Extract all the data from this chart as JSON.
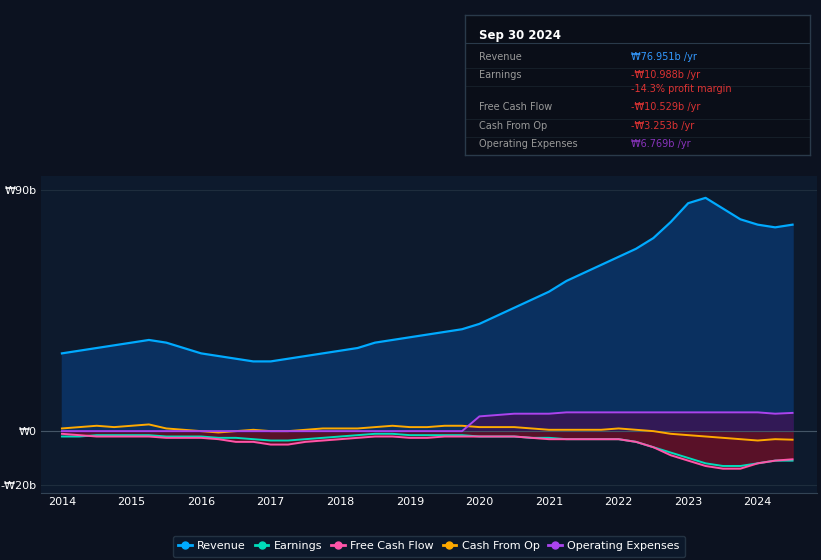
{
  "bg_color": "#0c1220",
  "plot_bg_color": "#0d1a2d",
  "info_box_color": "#0a0f1a",
  "grid_color": "#1e2d3d",
  "title_box": {
    "date": "Sep 30 2024",
    "rows": [
      {
        "label": "Revenue",
        "value": "₩76.951b /yr",
        "value_color": "#3399ff"
      },
      {
        "label": "Earnings",
        "value": "-₩10.988b /yr",
        "value_color": "#dd3333"
      },
      {
        "label": "",
        "value": "-14.3% profit margin",
        "value_color": "#dd3333"
      },
      {
        "label": "Free Cash Flow",
        "value": "-₩10.529b /yr",
        "value_color": "#dd3333"
      },
      {
        "label": "Cash From Op",
        "value": "-₩3.253b /yr",
        "value_color": "#dd3333"
      },
      {
        "label": "Operating Expenses",
        "value": "₩6.769b /yr",
        "value_color": "#8833bb"
      }
    ]
  },
  "years": [
    2014.0,
    2014.25,
    2014.5,
    2014.75,
    2015.0,
    2015.25,
    2015.5,
    2015.75,
    2016.0,
    2016.25,
    2016.5,
    2016.75,
    2017.0,
    2017.25,
    2017.5,
    2017.75,
    2018.0,
    2018.25,
    2018.5,
    2018.75,
    2019.0,
    2019.25,
    2019.5,
    2019.75,
    2020.0,
    2020.25,
    2020.5,
    2020.75,
    2021.0,
    2021.25,
    2021.5,
    2021.75,
    2022.0,
    2022.25,
    2022.5,
    2022.75,
    2023.0,
    2023.25,
    2023.5,
    2023.75,
    2024.0,
    2024.25,
    2024.5
  ],
  "revenue": [
    29,
    30,
    31,
    32,
    33,
    34,
    33,
    31,
    29,
    28,
    27,
    26,
    26,
    27,
    28,
    29,
    30,
    31,
    33,
    34,
    35,
    36,
    37,
    38,
    40,
    43,
    46,
    49,
    52,
    56,
    59,
    62,
    65,
    68,
    72,
    78,
    85,
    87,
    83,
    79,
    77,
    76,
    77
  ],
  "earnings": [
    -2.0,
    -2.0,
    -1.5,
    -1.5,
    -1.5,
    -1.5,
    -2.0,
    -2.0,
    -2.0,
    -2.5,
    -2.5,
    -3.0,
    -3.5,
    -3.5,
    -3.0,
    -2.5,
    -2.0,
    -1.5,
    -1.0,
    -1.0,
    -1.5,
    -1.5,
    -1.5,
    -1.5,
    -2.0,
    -2.0,
    -2.0,
    -2.5,
    -2.5,
    -3.0,
    -3.0,
    -3.0,
    -3.0,
    -4.0,
    -6.0,
    -8.0,
    -10.0,
    -12.0,
    -13.0,
    -13.0,
    -12.0,
    -11.0,
    -11.0
  ],
  "free_cash_flow": [
    -1.0,
    -1.5,
    -2.0,
    -2.0,
    -2.0,
    -2.0,
    -2.5,
    -2.5,
    -2.5,
    -3.0,
    -4.0,
    -4.0,
    -5.0,
    -5.0,
    -4.0,
    -3.5,
    -3.0,
    -2.5,
    -2.0,
    -2.0,
    -2.5,
    -2.5,
    -2.0,
    -2.0,
    -2.0,
    -2.0,
    -2.0,
    -2.5,
    -3.0,
    -3.0,
    -3.0,
    -3.0,
    -3.0,
    -4.0,
    -6.0,
    -9.0,
    -11.0,
    -13.0,
    -14.0,
    -14.0,
    -12.0,
    -11.0,
    -10.5
  ],
  "cash_from_op": [
    1.0,
    1.5,
    2.0,
    1.5,
    2.0,
    2.5,
    1.0,
    0.5,
    0.0,
    -0.5,
    0.0,
    0.5,
    0.0,
    0.0,
    0.5,
    1.0,
    1.0,
    1.0,
    1.5,
    2.0,
    1.5,
    1.5,
    2.0,
    2.0,
    1.5,
    1.5,
    1.5,
    1.0,
    0.5,
    0.5,
    0.5,
    0.5,
    1.0,
    0.5,
    0.0,
    -1.0,
    -1.5,
    -2.0,
    -2.5,
    -3.0,
    -3.5,
    -3.0,
    -3.2
  ],
  "operating_expenses": [
    0.0,
    0.0,
    0.0,
    0.0,
    0.0,
    0.0,
    0.0,
    0.0,
    0.0,
    0.0,
    0.0,
    0.0,
    0.0,
    0.0,
    0.0,
    0.0,
    0.0,
    0.0,
    0.0,
    0.0,
    0.0,
    0.0,
    0.0,
    0.0,
    5.5,
    6.0,
    6.5,
    6.5,
    6.5,
    7.0,
    7.0,
    7.0,
    7.0,
    7.0,
    7.0,
    7.0,
    7.0,
    7.0,
    7.0,
    7.0,
    7.0,
    6.5,
    6.8
  ],
  "revenue_color": "#00aaff",
  "earnings_color": "#00ddbb",
  "fcf_color": "#ff55aa",
  "cash_op_color": "#ffaa00",
  "opex_color": "#aa44ee",
  "revenue_fill": "#0a3060",
  "earnings_fill": "#3a1540",
  "fcf_fill": "#6a1020",
  "opex_fill": "#3a1555",
  "ylim": [
    -23,
    95
  ],
  "yticks": [
    -20,
    0,
    90
  ],
  "ytick_labels": [
    "-₩20b",
    "₩0",
    "₩90b"
  ],
  "xlim_left": 2013.7,
  "xlim_right": 2024.85,
  "xticks": [
    2014,
    2015,
    2016,
    2017,
    2018,
    2019,
    2020,
    2021,
    2022,
    2023,
    2024
  ],
  "legend_items": [
    {
      "label": "Revenue",
      "color": "#00aaff"
    },
    {
      "label": "Earnings",
      "color": "#00ddbb"
    },
    {
      "label": "Free Cash Flow",
      "color": "#ff55aa"
    },
    {
      "label": "Cash From Op",
      "color": "#ffaa00"
    },
    {
      "label": "Operating Expenses",
      "color": "#aa44ee"
    }
  ]
}
